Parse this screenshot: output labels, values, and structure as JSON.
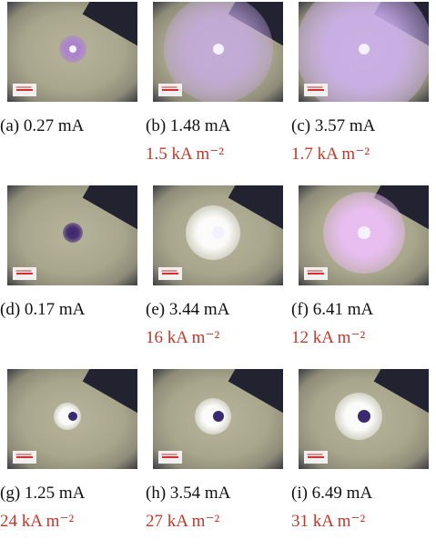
{
  "panels": [
    {
      "caption": "(a) 0.27 mA"
    },
    {
      "caption": "(b) 1.48 mA",
      "density": "1.5 kA m⁻²"
    },
    {
      "caption": "(c) 3.57 mA",
      "density": "1.7 kA m⁻²"
    },
    {
      "caption": "(d) 0.17 mA"
    },
    {
      "caption": "(e) 3.44 mA",
      "density": "16 kA m⁻²"
    },
    {
      "caption": "(f) 6.41 mA",
      "density": "12 kA m⁻²"
    },
    {
      "caption": "(g) 1.25 mA",
      "density": "24 kA m⁻²"
    },
    {
      "caption": "(h) 3.54 mA",
      "density": "27 kA m⁻²"
    },
    {
      "caption": "(i) 6.49 mA",
      "density": "31 kA m⁻²"
    }
  ]
}
